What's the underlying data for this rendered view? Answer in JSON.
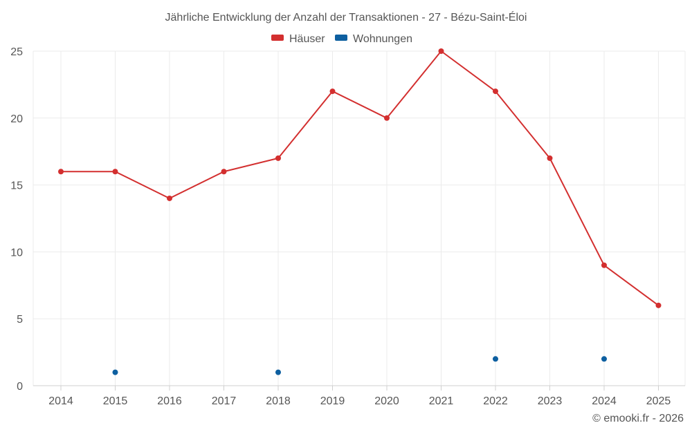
{
  "chart_data": {
    "type": "line",
    "title": "Jährliche Entwicklung der Anzahl der Transaktionen - 27 - Bézu-Saint-Éloi",
    "categories": [
      "2014",
      "2015",
      "2016",
      "2017",
      "2018",
      "2019",
      "2020",
      "2021",
      "2022",
      "2023",
      "2024",
      "2025"
    ],
    "series": [
      {
        "name": "Häuser",
        "color": "#d32f2f",
        "line": true,
        "values": [
          16,
          16,
          14,
          16,
          17,
          22,
          20,
          25,
          22,
          17,
          9,
          6
        ]
      },
      {
        "name": "Wohnungen",
        "color": "#0d5fa0",
        "line": false,
        "values": [
          null,
          1,
          null,
          null,
          1,
          null,
          null,
          null,
          2,
          null,
          2,
          null
        ]
      }
    ],
    "ylim": [
      0,
      25
    ],
    "yticks": [
      0,
      5,
      10,
      15,
      20,
      25
    ],
    "xlabel": "",
    "ylabel": "",
    "grid": true,
    "legend_position": "top-center"
  },
  "footer": "© emooki.fr - 2026"
}
